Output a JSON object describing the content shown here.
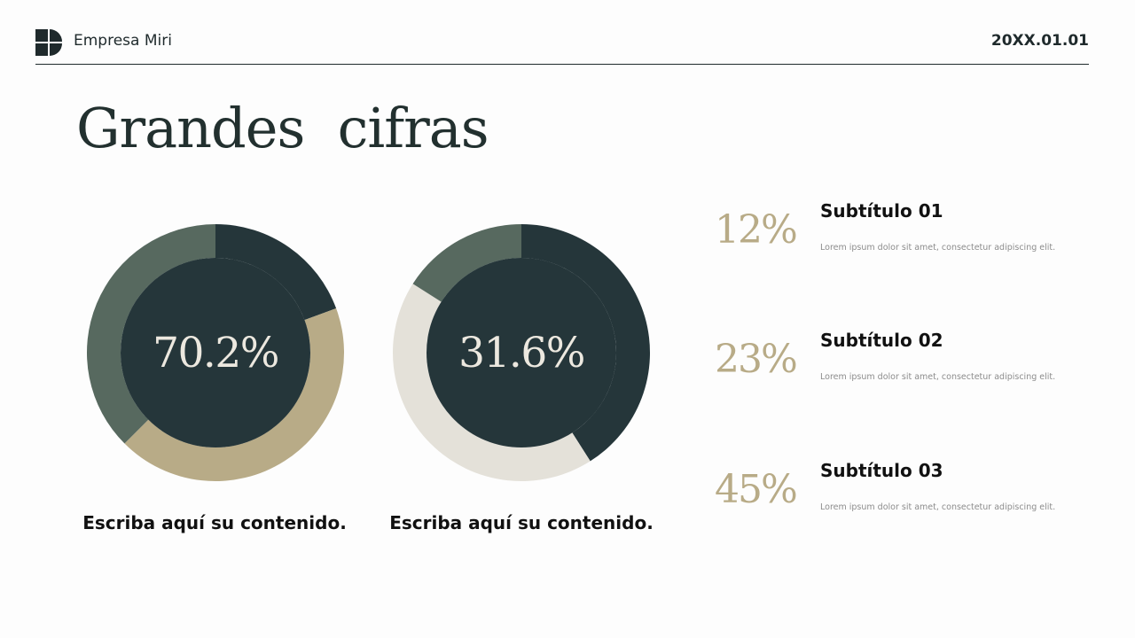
{
  "header": {
    "brand": "Empresa Miri",
    "date": "20XX.01.01"
  },
  "title": "Grandes  cifras",
  "colors": {
    "dark": "#25363a",
    "sage": "#57695f",
    "tan": "#b8ab87",
    "light": "#e4e1d9",
    "center_text": "#ece8df"
  },
  "chart_data": [
    {
      "type": "pie",
      "center_label": "70.2%",
      "slices": [
        {
          "value": 0.194,
          "color": "#25363a"
        },
        {
          "value": 0.431,
          "color": "#b8ab87"
        },
        {
          "value": 0.375,
          "color": "#57695f"
        }
      ],
      "caption": "Escriba aquí su contenido."
    },
    {
      "type": "pie",
      "center_label": "31.6%",
      "slices": [
        {
          "value": 0.41,
          "color": "#25363a"
        },
        {
          "value": 0.43,
          "color": "#e4e1d9"
        },
        {
          "value": 0.16,
          "color": "#57695f"
        }
      ],
      "caption": "Escriba aquí su contenido."
    }
  ],
  "stats": [
    {
      "value": "12%",
      "subtitle": "Subtítulo 01",
      "description": "Lorem ipsum dolor sit amet, consectetur adipiscing elit."
    },
    {
      "value": "23%",
      "subtitle": "Subtítulo 02",
      "description": "Lorem ipsum dolor sit amet, consectetur adipiscing elit."
    },
    {
      "value": "45%",
      "subtitle": "Subtítulo 03",
      "description": "Lorem ipsum dolor sit amet, consectetur adipiscing elit."
    }
  ]
}
